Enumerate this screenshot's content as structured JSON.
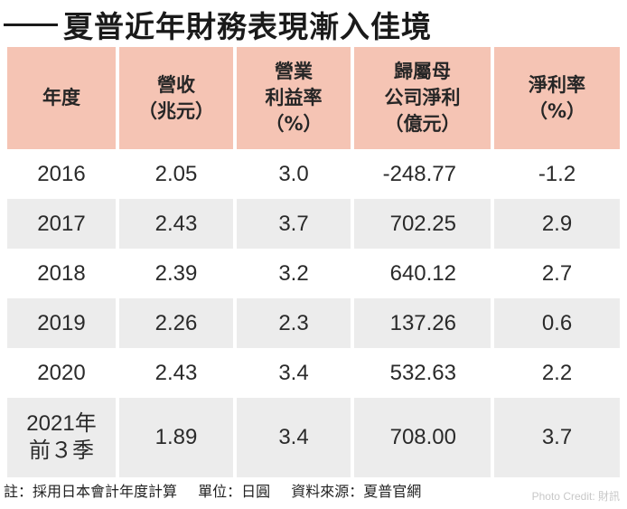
{
  "title": "夏普近年財務表現漸入佳境",
  "headers": [
    [
      "年度"
    ],
    [
      "營收",
      "（兆元）"
    ],
    [
      "營業",
      "利益率",
      "（%）"
    ],
    [
      "歸屬母",
      "公司淨利",
      "（億元）"
    ],
    [
      "淨利率",
      "（%）"
    ]
  ],
  "rows": [
    {
      "year": "2016",
      "revenue": "2.05",
      "op_margin": "3.0",
      "net_income": "-248.77",
      "net_margin": "-1.2"
    },
    {
      "year": "2017",
      "revenue": "2.43",
      "op_margin": "3.7",
      "net_income": "702.25",
      "net_margin": "2.9"
    },
    {
      "year": "2018",
      "revenue": "2.39",
      "op_margin": "3.2",
      "net_income": "640.12",
      "net_margin": "2.7"
    },
    {
      "year": "2019",
      "revenue": "2.26",
      "op_margin": "2.3",
      "net_income": "137.26",
      "net_margin": "0.6"
    },
    {
      "year": "2020",
      "revenue": "2.43",
      "op_margin": "3.4",
      "net_income": "532.63",
      "net_margin": "2.2"
    },
    {
      "year_line1": "2021年",
      "year_line2": "前３季",
      "revenue": "1.89",
      "op_margin": "3.4",
      "net_income": "708.00",
      "net_margin": "3.7"
    }
  ],
  "notes": {
    "note": "註：採用日本會計年度計算",
    "unit": "單位：日圓",
    "source": "資料來源：夏普官網"
  },
  "credit": "Photo Credit: 財訊",
  "colors": {
    "header_bg": "#f5c4b4",
    "stripe_bg": "#ececec"
  }
}
